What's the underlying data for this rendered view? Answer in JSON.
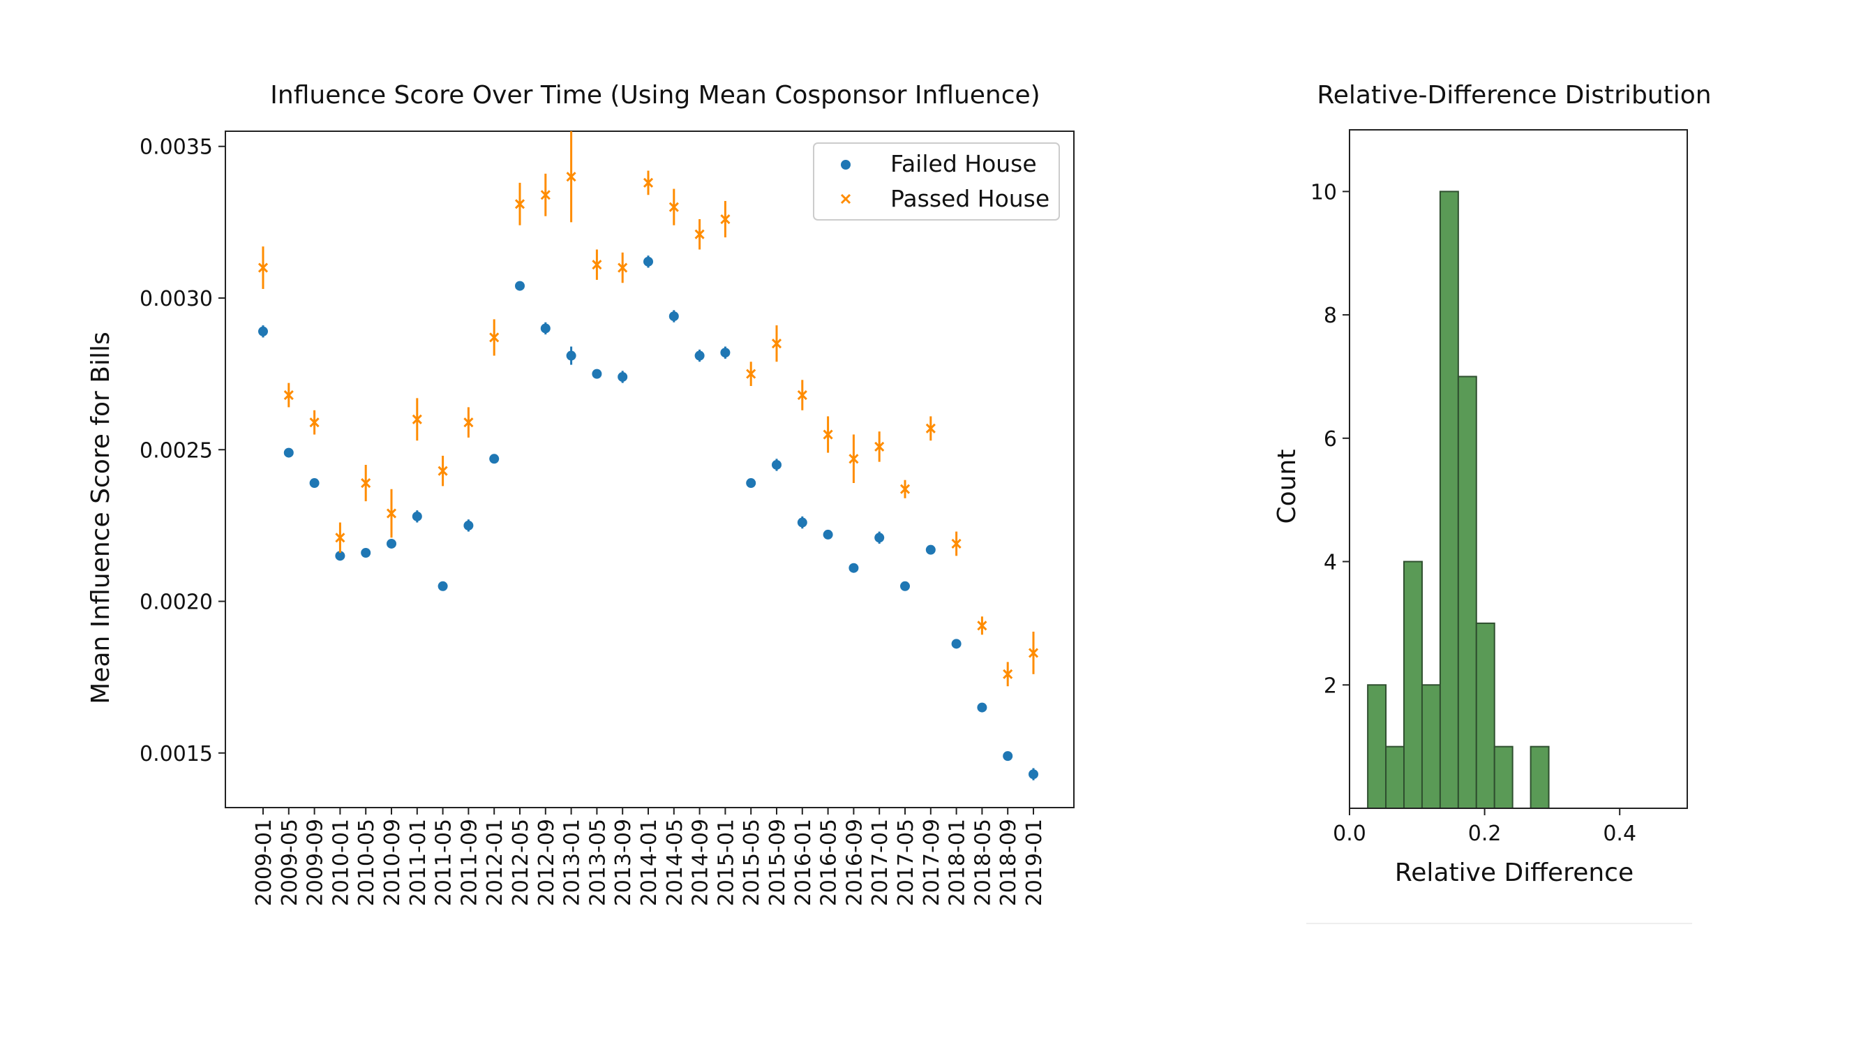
{
  "chart_data": [
    {
      "type": "scatter",
      "title": "Influence Score Over Time (Using Mean Cosponsor Influence)",
      "xlabel": "",
      "ylabel": "Mean Influence Score for Bills",
      "ylim": [
        0.00132,
        0.00355
      ],
      "y_ticks": [
        "0.0015",
        "0.0020",
        "0.0025",
        "0.0030",
        "0.0035"
      ],
      "y_tick_values": [
        0.0015,
        0.002,
        0.0025,
        0.003,
        0.0035
      ],
      "grid": false,
      "legend_position": "top-right",
      "categories": [
        "2009-01",
        "2009-05",
        "2009-09",
        "2010-01",
        "2010-05",
        "2010-09",
        "2011-01",
        "2011-05",
        "2011-09",
        "2012-01",
        "2012-05",
        "2012-09",
        "2013-01",
        "2013-05",
        "2013-09",
        "2014-01",
        "2014-05",
        "2014-09",
        "2015-01",
        "2015-05",
        "2015-09",
        "2016-01",
        "2016-05",
        "2016-09",
        "2017-01",
        "2017-05",
        "2017-09",
        "2018-01",
        "2018-05",
        "2018-09",
        "2019-01"
      ],
      "series": [
        {
          "name": "Failed House",
          "marker": "circle",
          "color": "#1f77b4",
          "values": [
            0.00289,
            0.00249,
            0.00239,
            0.00215,
            0.00216,
            0.00219,
            0.00228,
            0.00205,
            0.00225,
            0.00247,
            0.00304,
            0.0029,
            0.00281,
            0.00275,
            0.00274,
            0.00312,
            0.00294,
            0.00281,
            0.00282,
            0.00239,
            0.00245,
            0.00226,
            0.00222,
            0.00211,
            0.00221,
            0.00205,
            0.00217,
            0.00186,
            0.00165,
            0.00149,
            0.00143
          ],
          "errors": [
            2e-05,
            1e-05,
            1e-05,
            1e-05,
            1e-05,
            1e-05,
            2e-05,
            1e-05,
            2e-05,
            1e-05,
            1e-05,
            2e-05,
            3e-05,
            1e-05,
            2e-05,
            2e-05,
            2e-05,
            2e-05,
            2e-05,
            1e-05,
            2e-05,
            2e-05,
            1e-05,
            1e-05,
            2e-05,
            1e-05,
            1e-05,
            1e-05,
            1e-05,
            1e-05,
            2e-05
          ]
        },
        {
          "name": "Passed House",
          "marker": "x",
          "color": "#ff8c00",
          "values": [
            0.0031,
            0.00268,
            0.00259,
            0.00221,
            0.00239,
            0.00229,
            0.0026,
            0.00243,
            0.00259,
            0.00287,
            0.00331,
            0.00334,
            0.0034,
            0.00311,
            0.0031,
            0.00338,
            0.0033,
            0.00321,
            0.00326,
            0.00275,
            0.00285,
            0.00268,
            0.00255,
            0.00247,
            0.00251,
            0.00237,
            0.00257,
            0.00219,
            0.00192,
            0.00176,
            0.00183
          ],
          "errors": [
            7e-05,
            4e-05,
            4e-05,
            5e-05,
            6e-05,
            8e-05,
            7e-05,
            5e-05,
            5e-05,
            6e-05,
            7e-05,
            7e-05,
            0.00015,
            5e-05,
            5e-05,
            4e-05,
            6e-05,
            5e-05,
            6e-05,
            4e-05,
            6e-05,
            5e-05,
            6e-05,
            8e-05,
            5e-05,
            3e-05,
            4e-05,
            4e-05,
            3e-05,
            4e-05,
            7e-05
          ]
        }
      ]
    },
    {
      "type": "bar",
      "title": "Relative-Difference Distribution",
      "xlabel": "Relative Difference",
      "ylabel": "Count",
      "xlim": [
        0.0,
        0.5
      ],
      "ylim": [
        0,
        11
      ],
      "x_ticks": [
        "0.0",
        "0.2",
        "0.4"
      ],
      "x_tick_values": [
        0.0,
        0.2,
        0.4
      ],
      "y_ticks": [
        "2",
        "4",
        "6",
        "8",
        "10"
      ],
      "y_tick_values": [
        2,
        4,
        6,
        8,
        10
      ],
      "color": "#5a9a56",
      "edge_color": "#2f4f2f",
      "bin_width": 0.0268,
      "bin_edges": [
        0.027,
        0.0538,
        0.0806,
        0.1074,
        0.1342,
        0.161,
        0.1878,
        0.2146,
        0.2414,
        0.2682
      ],
      "values": [
        2,
        1,
        4,
        2,
        10,
        7,
        3,
        1,
        0,
        1
      ]
    }
  ]
}
